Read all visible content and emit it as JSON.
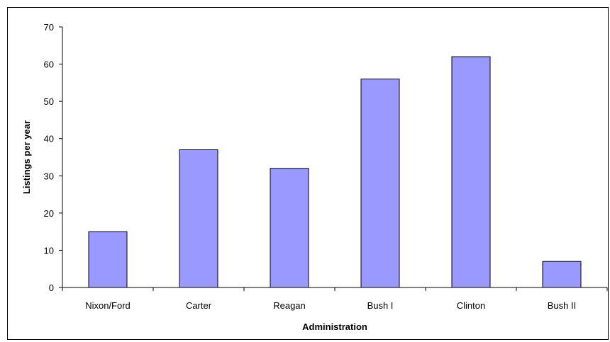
{
  "chart_data": {
    "type": "bar",
    "title": "",
    "xlabel": "Administration",
    "ylabel": "Listings per year",
    "categories": [
      "Nixon/Ford",
      "Carter",
      "Reagan",
      "Bush I",
      "Clinton",
      "Bush II"
    ],
    "values": [
      15,
      37,
      32,
      56,
      62,
      7
    ],
    "ylim": [
      0,
      70
    ],
    "yticks": [
      0,
      10,
      20,
      30,
      40,
      50,
      60,
      70
    ],
    "grid": false,
    "legend": "none",
    "bar_color": "#9999ff",
    "bar_edge_color": "#000000"
  }
}
